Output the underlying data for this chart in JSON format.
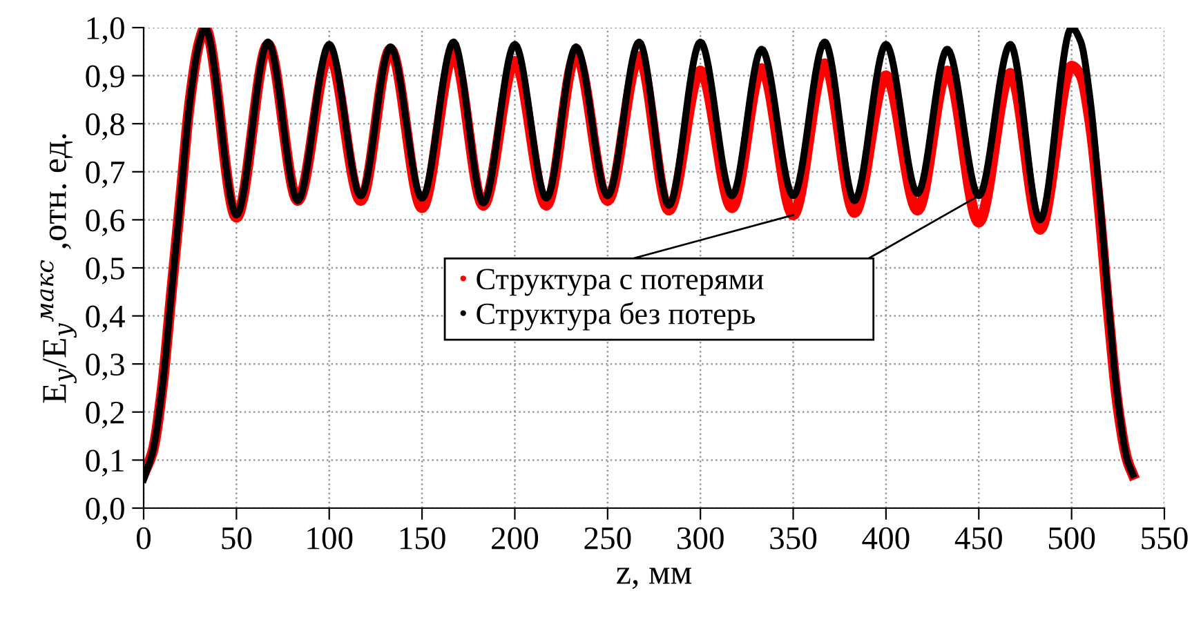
{
  "chart_data": {
    "type": "line",
    "xlabel": "z, мм",
    "ylabel": "E$_{y}$/E$_{y}$$^{макс}$ ,отн. ед.",
    "xlim": [
      0,
      550
    ],
    "xticks": [
      0,
      50,
      100,
      150,
      200,
      250,
      300,
      350,
      400,
      450,
      500,
      550
    ],
    "ylim": [
      0,
      1.0
    ],
    "yticks": [
      {
        "value": 0,
        "label": "0,0"
      },
      {
        "value": 0.1,
        "label": "0,1"
      },
      {
        "value": 0.2,
        "label": "0,2"
      },
      {
        "value": 0.3,
        "label": "0,3"
      },
      {
        "value": 0.4,
        "label": "0,4"
      },
      {
        "value": 0.5,
        "label": "0,5"
      },
      {
        "value": 0.6,
        "label": "0,6"
      },
      {
        "value": 0.7,
        "label": "0,7"
      },
      {
        "value": 0.8,
        "label": "0,8"
      },
      {
        "value": 0.9,
        "label": "0,9"
      },
      {
        "value": 1.0,
        "label": "1,0"
      }
    ],
    "grid": true,
    "legend": "center",
    "line_style": "solid",
    "series": [
      {
        "name": "Структура с потерями",
        "color": "#ff0000",
        "x": [
          0,
          5,
          10,
          15,
          20,
          25,
          30,
          33,
          50,
          67,
          83,
          100,
          117,
          133,
          150,
          167,
          183,
          200,
          217,
          233,
          250,
          267,
          283,
          300,
          317,
          333,
          350,
          367,
          383,
          400,
          417,
          433,
          450,
          467,
          483,
          500,
          505,
          510,
          515,
          520,
          525,
          530,
          533
        ],
        "values": [
          0.07,
          0.12,
          0.25,
          0.45,
          0.65,
          0.85,
          0.97,
          1.0,
          0.605,
          0.965,
          0.64,
          0.945,
          0.64,
          0.955,
          0.625,
          0.945,
          0.63,
          0.93,
          0.63,
          0.945,
          0.64,
          0.94,
          0.62,
          0.91,
          0.625,
          0.915,
          0.61,
          0.925,
          0.615,
          0.9,
          0.62,
          0.91,
          0.595,
          0.905,
          0.58,
          0.92,
          0.9,
          0.8,
          0.62,
          0.4,
          0.21,
          0.1,
          0.07
        ]
      },
      {
        "name": "Структура без потерь",
        "color": "#000000",
        "x": [
          0,
          5,
          10,
          15,
          20,
          25,
          30,
          33,
          50,
          67,
          83,
          100,
          117,
          133,
          150,
          167,
          183,
          200,
          217,
          233,
          250,
          267,
          283,
          300,
          317,
          333,
          350,
          367,
          383,
          400,
          417,
          433,
          450,
          467,
          483,
          500,
          505,
          510,
          515,
          520,
          525,
          530,
          533
        ],
        "values": [
          0.06,
          0.12,
          0.25,
          0.45,
          0.65,
          0.85,
          0.97,
          1.0,
          0.61,
          0.97,
          0.64,
          0.965,
          0.65,
          0.96,
          0.645,
          0.97,
          0.635,
          0.965,
          0.645,
          0.96,
          0.65,
          0.97,
          0.63,
          0.97,
          0.65,
          0.955,
          0.65,
          0.97,
          0.64,
          0.965,
          0.655,
          0.955,
          0.65,
          0.965,
          0.6,
          1.0,
          0.97,
          0.85,
          0.65,
          0.42,
          0.22,
          0.1,
          0.07
        ]
      }
    ]
  }
}
